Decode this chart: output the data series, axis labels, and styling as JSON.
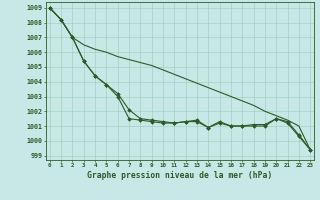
{
  "x": [
    0,
    1,
    2,
    3,
    4,
    5,
    6,
    7,
    8,
    9,
    10,
    11,
    12,
    13,
    14,
    15,
    16,
    17,
    18,
    19,
    20,
    21,
    22,
    23
  ],
  "line1": [
    1009.0,
    1008.2,
    1007.0,
    1006.5,
    1006.2,
    1006.0,
    1005.7,
    1005.5,
    1005.3,
    1005.1,
    1004.8,
    1004.5,
    1004.2,
    1003.9,
    1003.6,
    1003.3,
    1003.0,
    1002.7,
    1002.4,
    1002.0,
    1001.7,
    1001.4,
    1001.0,
    999.4
  ],
  "line2": [
    1009.0,
    1008.2,
    1007.0,
    1005.4,
    1004.4,
    1003.8,
    1003.2,
    1002.1,
    1001.5,
    1001.4,
    1001.3,
    1001.2,
    1001.3,
    1001.4,
    1000.9,
    1001.3,
    1001.0,
    1001.0,
    1001.1,
    1001.1,
    1001.5,
    1001.3,
    1000.4,
    999.4
  ],
  "line3": [
    1009.0,
    1008.2,
    1007.0,
    1005.4,
    1004.4,
    1003.8,
    1003.0,
    1001.5,
    1001.4,
    1001.3,
    1001.2,
    1001.2,
    1001.3,
    1001.3,
    1000.9,
    1001.2,
    1001.0,
    1001.0,
    1001.0,
    1001.0,
    1001.5,
    1001.2,
    1000.3,
    999.4
  ],
  "bg_color": "#c8e8e8",
  "grid_color": "#99ccbb",
  "line_color": "#2d5a27",
  "ylabel_values": [
    999,
    1000,
    1001,
    1002,
    1003,
    1004,
    1005,
    1006,
    1007,
    1008,
    1009
  ],
  "xlabel": "Graphe pression niveau de la mer (hPa)",
  "ylim": [
    998.7,
    1009.4
  ],
  "xlim": [
    -0.3,
    23.3
  ]
}
